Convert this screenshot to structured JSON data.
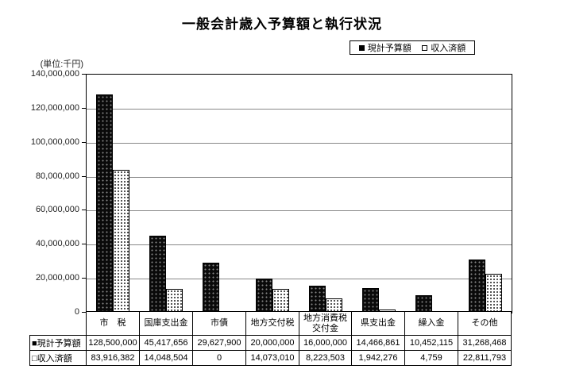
{
  "title": "一般会計歳入予算額と執行状況",
  "unit_label": "(単位:千円)",
  "legend": {
    "items": [
      {
        "label": "現計予算額",
        "swatch": "solid-black-square"
      },
      {
        "label": "収入済額",
        "swatch": "open-white-square"
      }
    ]
  },
  "chart_data": {
    "type": "bar",
    "title": "一般会計歳入予算額と執行状況",
    "categories": [
      "市　税",
      "国庫支出金",
      "市債",
      "地方交付税",
      "地方消費税\n交付金",
      "県支出金",
      "繰入金",
      "その他"
    ],
    "series": [
      {
        "name": "現計予算額",
        "style": "solid-black",
        "values": [
          128500000,
          45417656,
          29627900,
          20000000,
          16000000,
          14466861,
          10452115,
          31268468
        ]
      },
      {
        "name": "収入済額",
        "style": "dotted-white",
        "values": [
          83916382,
          14048504,
          0,
          14073010,
          8223503,
          1942276,
          4759,
          22811793
        ]
      }
    ],
    "xlabel": "",
    "ylabel": "(単位:千円)",
    "ylim": [
      0,
      140000000
    ],
    "ytick_interval": 20000000,
    "ytick_labels": [
      "0",
      "20,000,000",
      "40,000,000",
      "60,000,000",
      "80,000,000",
      "100,000,000",
      "120,000,000",
      "140,000,000"
    ],
    "grid": true,
    "legend_position": "top-right"
  },
  "table": {
    "row_labels": [
      "■現計予算額",
      "□収入済額"
    ],
    "rows": [
      [
        "128,500,000",
        "45,417,656",
        "29,627,900",
        "20,000,000",
        "16,000,000",
        "14,466,861",
        "10,452,115",
        "31,268,468"
      ],
      [
        "83,916,382",
        "14,048,504",
        "0",
        "14,073,010",
        "8,223,503",
        "1,942,276",
        "4,759",
        "22,811,793"
      ]
    ]
  },
  "colors": {
    "bar_solid": "#000000",
    "bar_dotted_bg": "#ffffff",
    "gridline": "#888888",
    "border": "#000000",
    "text": "#222222"
  }
}
